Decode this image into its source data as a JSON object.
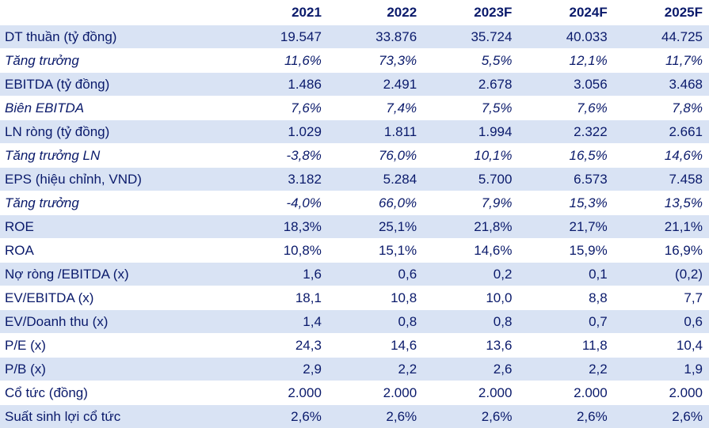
{
  "table": {
    "columns": [
      "",
      "2021",
      "2022",
      "2023F",
      "2024F",
      "2025F"
    ],
    "rows": [
      {
        "label": "DT thuần (tỷ đồng)",
        "values": [
          "19.547",
          "33.876",
          "35.724",
          "40.033",
          "44.725"
        ],
        "italic": false
      },
      {
        "label": "Tăng trưởng",
        "values": [
          "11,6%",
          "73,3%",
          "5,5%",
          "12,1%",
          "11,7%"
        ],
        "italic": true
      },
      {
        "label": "EBITDA (tỷ đồng)",
        "values": [
          "1.486",
          "2.491",
          "2.678",
          "3.056",
          "3.468"
        ],
        "italic": false
      },
      {
        "label": "Biên EBITDA",
        "values": [
          "7,6%",
          "7,4%",
          "7,5%",
          "7,6%",
          "7,8%"
        ],
        "italic": true
      },
      {
        "label": "LN ròng (tỷ đồng)",
        "values": [
          "1.029",
          "1.811",
          "1.994",
          "2.322",
          "2.661"
        ],
        "italic": false
      },
      {
        "label": "Tăng trưởng LN",
        "values": [
          "-3,8%",
          "76,0%",
          "10,1%",
          "16,5%",
          "14,6%"
        ],
        "italic": true
      },
      {
        "label": "EPS (hiệu chỉnh, VND)",
        "values": [
          "3.182",
          "5.284",
          "5.700",
          "6.573",
          "7.458"
        ],
        "italic": false
      },
      {
        "label": "Tăng trưởng",
        "values": [
          "-4,0%",
          "66,0%",
          "7,9%",
          "15,3%",
          "13,5%"
        ],
        "italic": true
      },
      {
        "label": "ROE",
        "values": [
          "18,3%",
          "25,1%",
          "21,8%",
          "21,7%",
          "21,1%"
        ],
        "italic": false
      },
      {
        "label": "ROA",
        "values": [
          "10,8%",
          "15,1%",
          "14,6%",
          "15,9%",
          "16,9%"
        ],
        "italic": false
      },
      {
        "label": "Nợ ròng /EBITDA (x)",
        "values": [
          "1,6",
          "0,6",
          "0,2",
          "0,1",
          "(0,2)"
        ],
        "italic": false
      },
      {
        "label": "EV/EBITDA (x)",
        "values": [
          "18,1",
          "10,8",
          "10,0",
          "8,8",
          "7,7"
        ],
        "italic": false
      },
      {
        "label": "EV/Doanh thu (x)",
        "values": [
          "1,4",
          "0,8",
          "0,8",
          "0,7",
          "0,6"
        ],
        "italic": false
      },
      {
        "label": "P/E (x)",
        "values": [
          "24,3",
          "14,6",
          "13,6",
          "11,8",
          "10,4"
        ],
        "italic": false
      },
      {
        "label": "P/B (x)",
        "values": [
          "2,9",
          "2,2",
          "2,6",
          "2,2",
          "1,9"
        ],
        "italic": false
      },
      {
        "label": "Cổ tức (đồng)",
        "values": [
          "2.000",
          "2.000",
          "2.000",
          "2.000",
          "2.000"
        ],
        "italic": false
      },
      {
        "label": "Suất sinh lợi cổ tức",
        "values": [
          "2,6%",
          "2,6%",
          "2,6%",
          "2,6%",
          "2,6%"
        ],
        "italic": false
      }
    ]
  },
  "colors": {
    "text": "#0a1a6b",
    "band": "#d9e3f4",
    "background": "#ffffff"
  }
}
